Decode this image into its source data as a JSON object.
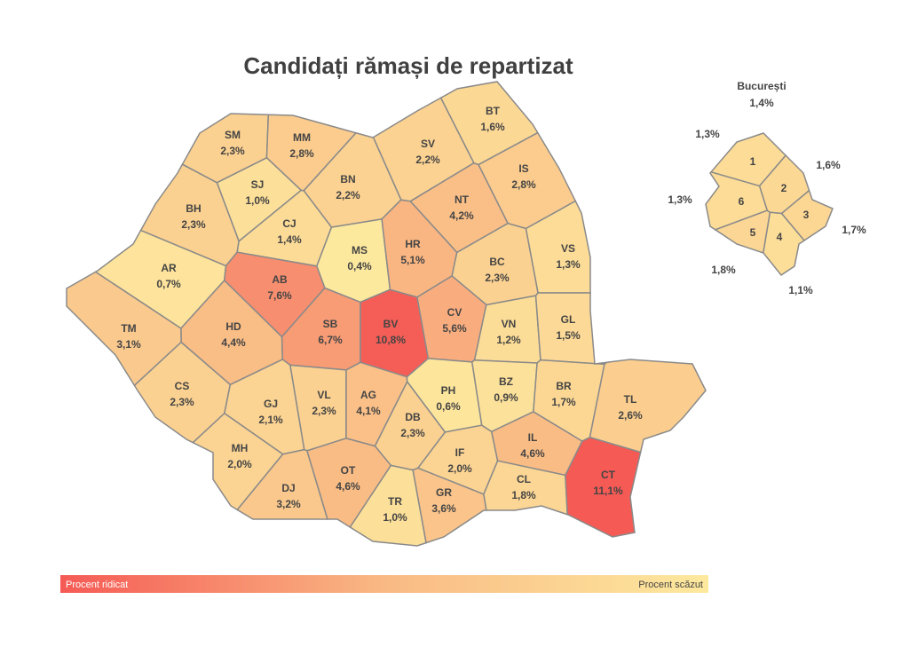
{
  "title": "Candidați rămași de repartizat",
  "counties": [
    {
      "code": "SM",
      "value": 2.3,
      "value_label": "2,3%"
    },
    {
      "code": "MM",
      "value": 2.8,
      "value_label": "2,8%"
    },
    {
      "code": "BT",
      "value": 1.6,
      "value_label": "1,6%"
    },
    {
      "code": "SV",
      "value": 2.2,
      "value_label": "2,2%"
    },
    {
      "code": "SJ",
      "value": 1.0,
      "value_label": "1,0%"
    },
    {
      "code": "BN",
      "value": 2.2,
      "value_label": "2,2%"
    },
    {
      "code": "IS",
      "value": 2.8,
      "value_label": "2,8%"
    },
    {
      "code": "NT",
      "value": 4.2,
      "value_label": "4,2%"
    },
    {
      "code": "BH",
      "value": 2.3,
      "value_label": "2,3%"
    },
    {
      "code": "CJ",
      "value": 1.4,
      "value_label": "1,4%"
    },
    {
      "code": "MS",
      "value": 0.4,
      "value_label": "0,4%"
    },
    {
      "code": "HR",
      "value": 5.1,
      "value_label": "5,1%"
    },
    {
      "code": "BC",
      "value": 2.3,
      "value_label": "2,3%"
    },
    {
      "code": "VS",
      "value": 1.3,
      "value_label": "1,3%"
    },
    {
      "code": "AR",
      "value": 0.7,
      "value_label": "0,7%"
    },
    {
      "code": "AB",
      "value": 7.6,
      "value_label": "7,6%"
    },
    {
      "code": "HD",
      "value": 4.4,
      "value_label": "4,4%"
    },
    {
      "code": "SB",
      "value": 6.7,
      "value_label": "6,7%"
    },
    {
      "code": "BV",
      "value": 10.8,
      "value_label": "10,8%"
    },
    {
      "code": "CV",
      "value": 5.6,
      "value_label": "5,6%"
    },
    {
      "code": "VN",
      "value": 1.2,
      "value_label": "1,2%"
    },
    {
      "code": "GL",
      "value": 1.5,
      "value_label": "1,5%"
    },
    {
      "code": "TM",
      "value": 3.1,
      "value_label": "3,1%"
    },
    {
      "code": "CS",
      "value": 2.3,
      "value_label": "2,3%"
    },
    {
      "code": "GJ",
      "value": 2.1,
      "value_label": "2,1%"
    },
    {
      "code": "VL",
      "value": 2.3,
      "value_label": "2,3%"
    },
    {
      "code": "AG",
      "value": 4.1,
      "value_label": "4,1%"
    },
    {
      "code": "DB",
      "value": 2.3,
      "value_label": "2,3%"
    },
    {
      "code": "PH",
      "value": 0.6,
      "value_label": "0,6%"
    },
    {
      "code": "BZ",
      "value": 0.9,
      "value_label": "0,9%"
    },
    {
      "code": "BR",
      "value": 1.7,
      "value_label": "1,7%"
    },
    {
      "code": "TL",
      "value": 2.6,
      "value_label": "2,6%"
    },
    {
      "code": "MH",
      "value": 2.0,
      "value_label": "2,0%"
    },
    {
      "code": "DJ",
      "value": 3.2,
      "value_label": "3,2%"
    },
    {
      "code": "OT",
      "value": 4.6,
      "value_label": "4,6%"
    },
    {
      "code": "TR",
      "value": 1.0,
      "value_label": "1,0%"
    },
    {
      "code": "GR",
      "value": 3.6,
      "value_label": "3,6%"
    },
    {
      "code": "IF",
      "value": 2.0,
      "value_label": "2,0%"
    },
    {
      "code": "IL",
      "value": 4.6,
      "value_label": "4,6%"
    },
    {
      "code": "CL",
      "value": 1.8,
      "value_label": "1,8%"
    },
    {
      "code": "CT",
      "value": 11.1,
      "value_label": "11,1%"
    }
  ],
  "bucharest": {
    "title": "București",
    "value": 1.4,
    "value_label": "1,4%",
    "sectors": [
      {
        "label": "1",
        "value": 1.3,
        "value_label": "1,3%"
      },
      {
        "label": "2",
        "value": 1.6,
        "value_label": "1,6%"
      },
      {
        "label": "3",
        "value": 1.7,
        "value_label": "1,7%"
      },
      {
        "label": "4",
        "value": 1.1,
        "value_label": "1,1%"
      },
      {
        "label": "5",
        "value": 1.8,
        "value_label": "1,8%"
      },
      {
        "label": "6",
        "value": 1.3,
        "value_label": "1,3%"
      }
    ]
  },
  "legend": {
    "high": "Procent ridicat",
    "low": "Procent scăzut"
  }
}
